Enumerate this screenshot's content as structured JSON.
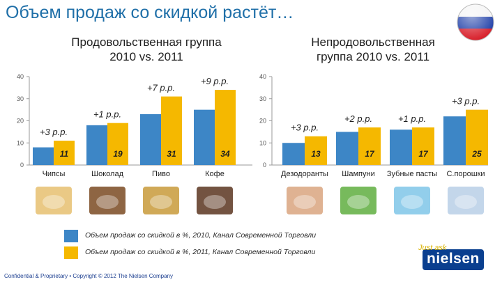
{
  "title": "Объем продаж со скидкой растёт…",
  "colors": {
    "series2010": "#3d86c6",
    "series2011": "#f5b800",
    "title": "#1f6fa8",
    "change": "#1f1f1f"
  },
  "chart_data": [
    {
      "type": "bar",
      "title": "Продовольственная группа 2010 vs. 2011",
      "categories": [
        "Чипсы",
        "Шоколад",
        "Пиво",
        "Кофе"
      ],
      "series": [
        {
          "name": "Объем продаж со скидкой в %, 2010, Канал Современной Торговли",
          "values": [
            8,
            18,
            23,
            25
          ]
        },
        {
          "name": "Объем продаж со скидкой в %, 2011, Канал Современной Торговли",
          "values": [
            11,
            19,
            31,
            34
          ]
        }
      ],
      "labels_2011": [
        "11",
        "19",
        "31",
        "34"
      ],
      "change_labels": [
        "+3 р.р.",
        "+1 р.р.",
        "+7 р.р.",
        "+9 р.р."
      ],
      "yticks": [
        "0",
        "10",
        "20",
        "30",
        "40"
      ],
      "ylim": [
        0,
        40
      ]
    },
    {
      "type": "bar",
      "title": "Непродовольственная группа 2010 vs. 2011",
      "categories": [
        "Дезодоранты",
        "Шампуни",
        "Зубные пасты",
        "С.порошки"
      ],
      "series": [
        {
          "name": "Объем продаж со скидкой в %, 2010, Канал Современной Торговли",
          "values": [
            10,
            15,
            16,
            22
          ]
        },
        {
          "name": "Объем продаж со скидкой в %, 2011, Канал Современной Торговли",
          "values": [
            13,
            17,
            17,
            25
          ]
        }
      ],
      "labels_2011": [
        "13",
        "17",
        "17",
        "25"
      ],
      "change_labels": [
        "+3 р.р.",
        "+2 р.р.",
        "+1 р.р.",
        "+3 р.р."
      ],
      "yticks": [
        "0",
        "10",
        "20",
        "30",
        "40"
      ],
      "ylim": [
        0,
        40
      ]
    }
  ],
  "subtitles": {
    "food": "Продовольственная группа\n2010 vs. 2011",
    "nonfood": "Непродовольственная\nгруппа 2010 vs. 2011"
  },
  "legend": {
    "item2010": "Объем продаж со скидкой в %, 2010, Канал Современной Торговли",
    "item2011": "Объем продаж со скидкой в %, 2011, Канал Современной Торговли"
  },
  "footer": "Confidential & Proprietary • Copyright © 2012 The Nielsen Company",
  "brand": {
    "tagline": "Just ask",
    "name": "nielsen"
  },
  "icons": [
    "russia-flag-icon",
    "chips-photo-icon",
    "chocolate-photo-icon",
    "beer-photo-icon",
    "coffee-photo-icon",
    "deodorant-photo-icon",
    "shampoo-photo-icon",
    "toothpaste-photo-icon",
    "detergent-photo-icon"
  ]
}
